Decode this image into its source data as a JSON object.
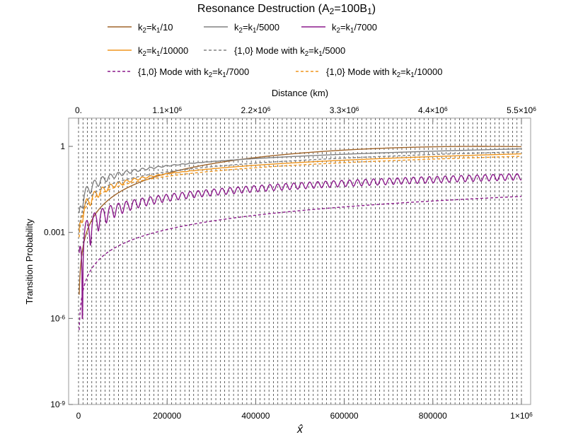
{
  "chart_data": {
    "type": "line",
    "title": "Resonance Destruction (A₂=100B₁)",
    "xlabel": "x̂",
    "ylabel": "Transition Probability",
    "top_axis_label": "Distance (km)",
    "y_scale": "log",
    "xlim": [
      -5000,
      1025000
    ],
    "ylim": [
      1e-09,
      100
    ],
    "grid": "vertical dashed",
    "legend_position": "top",
    "x_ticks": [
      {
        "value": 0,
        "label": "0"
      },
      {
        "value": 200000,
        "label": "200000"
      },
      {
        "value": 400000,
        "label": "400000"
      },
      {
        "value": 600000,
        "label": "600000"
      },
      {
        "value": 800000,
        "label": "800000"
      },
      {
        "value": 1000000,
        "label": "1×10⁶"
      }
    ],
    "top_ticks": [
      {
        "value": 0,
        "label": "0."
      },
      {
        "value": 1100000,
        "label": "1.1×10⁶"
      },
      {
        "value": 2200000,
        "label": "2.2×10⁶"
      },
      {
        "value": 3300000,
        "label": "3.3×10⁶"
      },
      {
        "value": 4400000,
        "label": "4.4×10⁶"
      },
      {
        "value": 5500000,
        "label": "5.5×10⁶"
      }
    ],
    "top_scale": 5.5,
    "y_ticks": [
      {
        "value": 1,
        "label": "1"
      },
      {
        "value": 0.001,
        "label": "0.001"
      },
      {
        "value": 1e-06,
        "label": "10⁻⁶"
      },
      {
        "value": 1e-09,
        "label": "10⁻⁹"
      }
    ],
    "series": [
      {
        "name": "k₂=k₁/10",
        "color": "#a0652a",
        "dash": false
      },
      {
        "name": "k₂=k₁/5000",
        "color": "#808080",
        "dash": false
      },
      {
        "name": "k₂=k₁/7000",
        "color": "#8b1a8b",
        "dash": false
      },
      {
        "name": "k₂=k₁/10000",
        "color": "#f0961e",
        "dash": false
      },
      {
        "name": "{1,0} Mode with k₂=k₁/5000",
        "color": "#808080",
        "dash": true
      },
      {
        "name": "{1,0} Mode with k₂=k₁/7000",
        "color": "#8b1a8b",
        "dash": true
      },
      {
        "name": "{1,0} Mode with k₂=k₁/10000",
        "color": "#f0961e",
        "dash": true
      }
    ]
  }
}
